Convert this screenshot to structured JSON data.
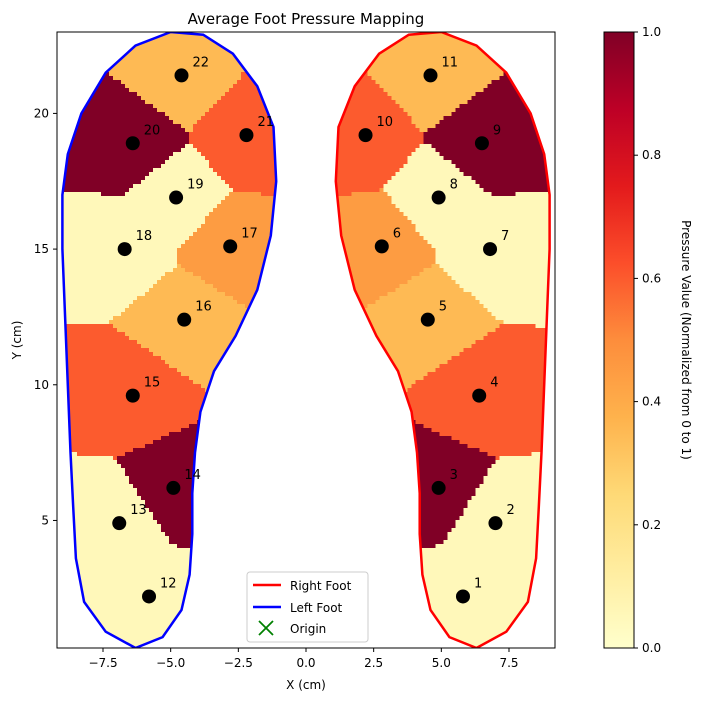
{
  "chart_data": {
    "type": "heatmap",
    "title": "Average Foot Pressure Mapping",
    "xlabel": "X (cm)",
    "ylabel": "Y (cm)",
    "xlim": [
      -9.2,
      9.2
    ],
    "ylim": [
      0.3,
      23
    ],
    "xticks": [
      -7.5,
      -5.0,
      -2.5,
      0.0,
      2.5,
      5.0,
      7.5
    ],
    "xtick_labels": [
      "−7.5",
      "−5.0",
      "−2.5",
      "0.0",
      "2.5",
      "5.0",
      "7.5"
    ],
    "yticks": [
      5,
      10,
      15,
      20
    ],
    "ytick_labels": [
      "5",
      "10",
      "15",
      "20"
    ],
    "grid": false,
    "colormap": "YlOrRd",
    "colorbar": {
      "label": "Pressure Value (Normalized from 0 to 1)",
      "range": [
        0,
        1
      ],
      "ticks": [
        0,
        0.2,
        0.4,
        0.6,
        0.8,
        1.0
      ],
      "tick_labels": [
        "0.0",
        "0.2",
        "0.4",
        "0.6",
        "0.8",
        "1.0"
      ]
    },
    "legend": {
      "placement": "lower-center",
      "entries": [
        {
          "label": "Right Foot",
          "color": "#ff0000",
          "marker": "line"
        },
        {
          "label": "Left Foot",
          "color": "#0000ff",
          "marker": "line"
        },
        {
          "label": "Origin",
          "color": "#008000",
          "marker": "x"
        }
      ]
    },
    "origin": {
      "x": 0,
      "y": 0
    },
    "sensors": [
      {
        "id": "1",
        "x": 5.8,
        "y": 2.2,
        "value": 0.05
      },
      {
        "id": "2",
        "x": 7.0,
        "y": 4.9,
        "value": 0.05
      },
      {
        "id": "3",
        "x": 4.9,
        "y": 6.2,
        "value": 1.0
      },
      {
        "id": "4",
        "x": 6.4,
        "y": 9.6,
        "value": 0.6
      },
      {
        "id": "5",
        "x": 4.5,
        "y": 12.4,
        "value": 0.35
      },
      {
        "id": "6",
        "x": 2.8,
        "y": 15.1,
        "value": 0.45
      },
      {
        "id": "7",
        "x": 6.8,
        "y": 15.0,
        "value": 0.05
      },
      {
        "id": "8",
        "x": 4.9,
        "y": 16.9,
        "value": 0.05
      },
      {
        "id": "9",
        "x": 6.5,
        "y": 18.9,
        "value": 1.0
      },
      {
        "id": "10",
        "x": 2.2,
        "y": 19.2,
        "value": 0.6
      },
      {
        "id": "11",
        "x": 4.6,
        "y": 21.4,
        "value": 0.35
      },
      {
        "id": "12",
        "x": -5.8,
        "y": 2.2,
        "value": 0.05
      },
      {
        "id": "13",
        "x": -6.9,
        "y": 4.9,
        "value": 0.05
      },
      {
        "id": "14",
        "x": -4.9,
        "y": 6.2,
        "value": 1.0
      },
      {
        "id": "15",
        "x": -6.4,
        "y": 9.6,
        "value": 0.6
      },
      {
        "id": "16",
        "x": -4.5,
        "y": 12.4,
        "value": 0.35
      },
      {
        "id": "17",
        "x": -2.8,
        "y": 15.1,
        "value": 0.45
      },
      {
        "id": "18",
        "x": -6.7,
        "y": 15.0,
        "value": 0.05
      },
      {
        "id": "19",
        "x": -4.8,
        "y": 16.9,
        "value": 0.05
      },
      {
        "id": "20",
        "x": -6.4,
        "y": 18.9,
        "value": 1.0
      },
      {
        "id": "21",
        "x": -2.2,
        "y": 19.2,
        "value": 0.6
      },
      {
        "id": "22",
        "x": -4.6,
        "y": 21.4,
        "value": 0.35
      }
    ]
  }
}
